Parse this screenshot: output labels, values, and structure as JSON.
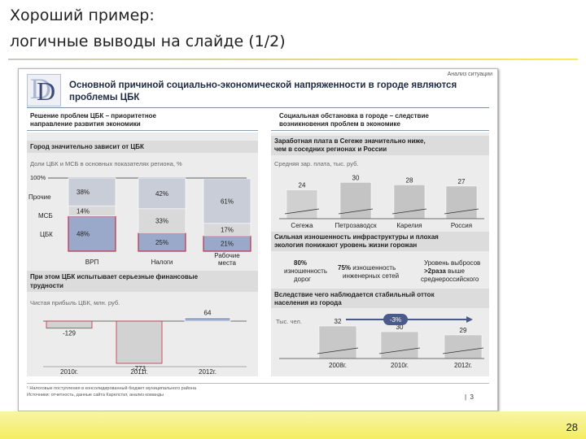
{
  "page": {
    "title_line1": "Хороший пример:",
    "title_line2": "логичные выводы на слайде (1/2)",
    "page_number": "28"
  },
  "slide": {
    "tag": "Анализ ситуации",
    "logo_letter": "D",
    "headline_line1": "Основной причиной социально-экономической напряженности в городе являются",
    "headline_line2": "проблемы ЦБК",
    "left_sub_line1": "Решение проблем ЦБК – приоритетное",
    "left_sub_line2": "направление развития экономики",
    "right_sub_line1": "Социальная обстановка в городе – следствие",
    "right_sub_line2": "возникновения проблем в экономике",
    "chart1": {
      "title": "Город значительно зависит от ЦБК",
      "subtitle": "Доли ЦБК и МСБ в основных показателях региона, %",
      "y_top_label": "100%",
      "row_labels": [
        "Прочие",
        "МСБ",
        "ЦБК"
      ],
      "bars": [
        {
          "label": "ВРП",
          "segments": [
            {
              "name": "ЦБК",
              "value": 48,
              "label": "48%"
            },
            {
              "name": "МСБ",
              "value": 14,
              "label": "14%"
            },
            {
              "name": "Прочие",
              "value": 38,
              "label": "38%"
            }
          ]
        },
        {
          "label": "Налоги",
          "segments": [
            {
              "name": "ЦБК",
              "value": 25,
              "label": "25%"
            },
            {
              "name": "МСБ",
              "value": 33,
              "label": "33%"
            },
            {
              "name": "Прочие",
              "value": 42,
              "label": "42%"
            }
          ]
        },
        {
          "label_line1": "Рабочие",
          "label_line2": "места",
          "segments": [
            {
              "name": "ЦБК",
              "value": 21,
              "label": "21%"
            },
            {
              "name": "МСБ",
              "value": 17,
              "label": "17%"
            },
            {
              "name": "Прочие",
              "value": 61,
              "label": "61%"
            }
          ]
        }
      ],
      "colors": {
        "cbk": "#9aa9c9",
        "msb": "#d9d9d9",
        "other": "#c8cdd8",
        "outline": "#c0304a"
      }
    },
    "finance": {
      "title_line1": "При этом ЦБК испытывает серьезные финансовые",
      "title_line2": "трудности",
      "subtitle": "Чистая прибыль ЦБК, млн. руб.",
      "bars": [
        {
          "year": "2010г.",
          "value": -129,
          "label": "-129"
        },
        {
          "year": "2011г.",
          "value": -773,
          "label": "-773"
        },
        {
          "year": "2012г.",
          "value": 64,
          "label": "64"
        }
      ]
    },
    "salary": {
      "title_line1": "Заработная плата в Сегеже значительно ниже,",
      "title_line2": "чем в соседних регионах и России",
      "subtitle": "Средняя зар. плата, тыс. руб.",
      "bars": [
        {
          "label": "Сегежа",
          "value": 24,
          "text": "24"
        },
        {
          "label": "Петрозаводск",
          "value": 30,
          "text": "30"
        },
        {
          "label": "Карелия",
          "value": 28,
          "text": "28"
        },
        {
          "label": "Россия",
          "value": 27,
          "text": "27"
        }
      ]
    },
    "infra": {
      "title_line1": "Сильная изношенность инфраструктуры и плохая",
      "title_line2": "экология понижают уровень жизни горожан",
      "col1_bold": "80%",
      "col1_line1": "изношенность",
      "col1_line2": "дорог",
      "col2_bold": "75%",
      "col2_line1": "изношенность",
      "col2_line2": "инженерных сетей",
      "col3_line1": "Уровень выбросов",
      "col3_bold": ">2раза",
      "col3_line2": "выше",
      "col3_line3": "среднероссийского"
    },
    "population": {
      "title_line1": "Вследствие чего наблюдается стабильный отток",
      "title_line2": "населения из города",
      "subtitle": "Тыс. чел.",
      "change": "-3%",
      "bars": [
        {
          "year": "2008г.",
          "value": 32,
          "text": "32"
        },
        {
          "year": "2010г.",
          "value": 30,
          "text": "30"
        },
        {
          "year": "2012г.",
          "value": 29,
          "text": "29"
        }
      ]
    },
    "footnote_line1": "¹ Налоговые поступления в консолидированный бюджет муниципального района",
    "footnote_line2": "Источники: отчетность, данные сайта Карелстат, анализ команды",
    "slide_page": "3"
  }
}
